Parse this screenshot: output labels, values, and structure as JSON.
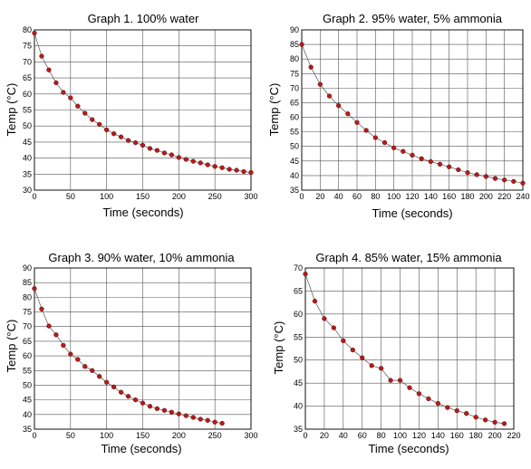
{
  "chart_data": [
    {
      "type": "scatter",
      "title": "Graph 1. 100% water",
      "xlabel": "Time (seconds)",
      "ylabel": "Temp (°C)",
      "xlim": [
        0,
        300
      ],
      "ylim": [
        30,
        80
      ],
      "xticks": [
        0,
        50,
        100,
        150,
        200,
        250,
        300
      ],
      "yticks": [
        30,
        35,
        40,
        45,
        50,
        55,
        60,
        65,
        70,
        75,
        80
      ],
      "grid": true,
      "x": [
        0,
        10,
        20,
        30,
        40,
        50,
        60,
        70,
        80,
        90,
        100,
        110,
        120,
        130,
        140,
        150,
        160,
        170,
        180,
        190,
        200,
        210,
        220,
        230,
        240,
        250,
        260,
        270,
        280,
        290,
        300
      ],
      "y": [
        79.0,
        71.8,
        67.5,
        63.5,
        60.5,
        58.8,
        56.2,
        54.0,
        52.0,
        50.5,
        48.8,
        47.6,
        46.6,
        45.5,
        44.8,
        44.0,
        43.0,
        42.4,
        41.6,
        41.0,
        40.2,
        39.6,
        39.0,
        38.5,
        37.9,
        37.4,
        37.0,
        36.5,
        36.2,
        35.8,
        35.5
      ]
    },
    {
      "type": "scatter",
      "title": "Graph 2. 95% water, 5% ammonia",
      "xlabel": "Time (seconds)",
      "ylabel": "Temp (°C)",
      "xlim": [
        0,
        240
      ],
      "ylim": [
        35,
        90
      ],
      "xticks": [
        0,
        20,
        40,
        60,
        80,
        100,
        120,
        140,
        160,
        180,
        200,
        220,
        240
      ],
      "yticks": [
        35,
        40,
        45,
        50,
        55,
        60,
        65,
        70,
        75,
        80,
        85,
        90
      ],
      "grid": true,
      "x": [
        0,
        10,
        20,
        30,
        40,
        50,
        60,
        70,
        80,
        90,
        100,
        110,
        120,
        130,
        140,
        150,
        160,
        170,
        180,
        190,
        200,
        210,
        220,
        230,
        240
      ],
      "y": [
        85.0,
        77.2,
        71.3,
        67.3,
        64.0,
        61.2,
        58.2,
        55.5,
        53.0,
        51.3,
        49.5,
        48.3,
        47.0,
        45.8,
        44.8,
        43.9,
        43.0,
        42.0,
        41.0,
        40.3,
        39.7,
        39.0,
        38.5,
        38.0,
        37.4
      ]
    },
    {
      "type": "scatter",
      "title": "Graph 3. 90% water, 10% ammonia",
      "xlabel": "Time (seconds)",
      "ylabel": "Temp (°C)",
      "xlim": [
        0,
        300
      ],
      "ylim": [
        35,
        90
      ],
      "xticks": [
        0,
        50,
        100,
        150,
        200,
        250,
        300
      ],
      "yticks": [
        35,
        40,
        45,
        50,
        55,
        60,
        65,
        70,
        75,
        80,
        85,
        90
      ],
      "grid": true,
      "x": [
        0,
        10,
        20,
        30,
        40,
        50,
        60,
        70,
        80,
        90,
        100,
        110,
        120,
        130,
        140,
        150,
        160,
        170,
        180,
        190,
        200,
        210,
        220,
        230,
        240,
        250,
        260
      ],
      "y": [
        83.0,
        76.0,
        70.2,
        67.2,
        63.6,
        60.6,
        58.8,
        56.4,
        55.0,
        53.0,
        51.0,
        49.4,
        47.6,
        46.2,
        45.0,
        43.9,
        42.8,
        42.0,
        41.4,
        40.8,
        40.2,
        39.6,
        39.0,
        38.4,
        38.0,
        37.4,
        37.0
      ]
    },
    {
      "type": "scatter",
      "title": "Graph 4. 85% water, 15% ammonia",
      "xlabel": "Time (seconds)",
      "ylabel": "Temp (°C)",
      "xlim": [
        0,
        220
      ],
      "ylim": [
        35,
        70
      ],
      "xticks": [
        0,
        20,
        40,
        60,
        80,
        100,
        120,
        140,
        160,
        180,
        200,
        220
      ],
      "yticks": [
        35,
        40,
        45,
        50,
        55,
        60,
        65,
        70
      ],
      "grid": true,
      "x": [
        0,
        10,
        20,
        30,
        40,
        50,
        60,
        70,
        80,
        90,
        100,
        110,
        120,
        130,
        140,
        150,
        160,
        170,
        180,
        190,
        200,
        210
      ],
      "y": [
        68.7,
        62.8,
        59.0,
        57.0,
        54.2,
        52.2,
        50.5,
        48.8,
        48.2,
        45.6,
        45.6,
        44.0,
        42.7,
        41.6,
        40.6,
        39.7,
        39.0,
        38.4,
        37.6,
        37.0,
        36.5,
        36.2
      ]
    }
  ]
}
